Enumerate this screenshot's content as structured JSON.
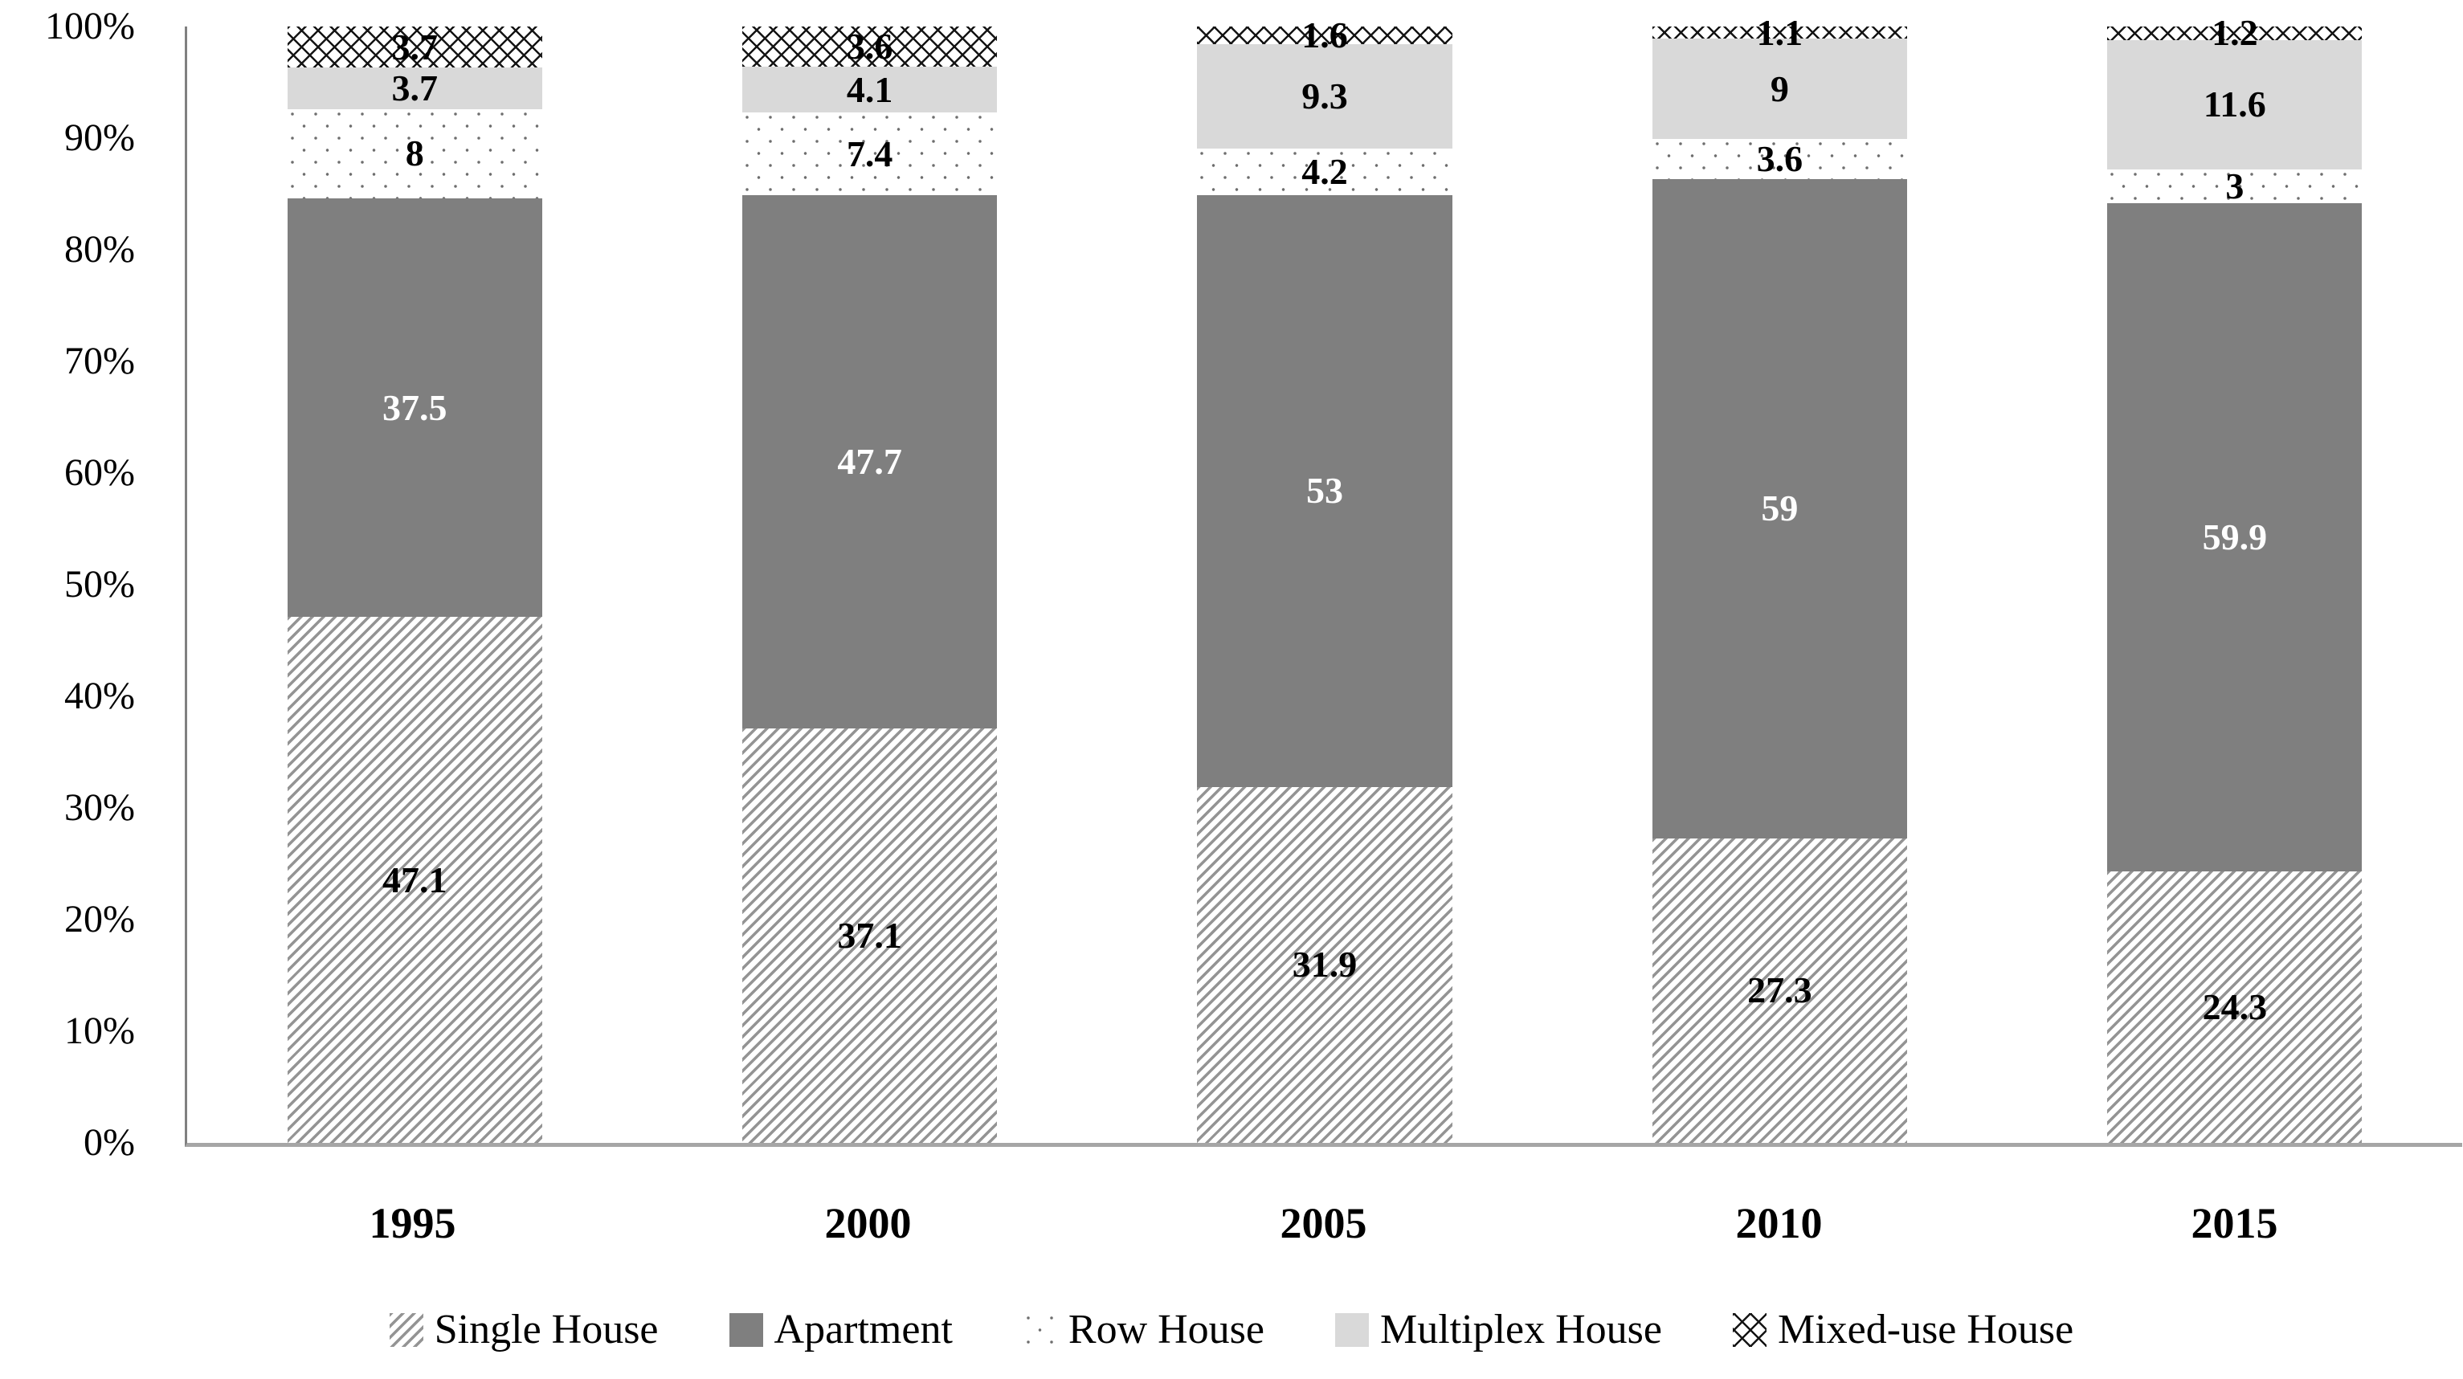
{
  "chart_data": {
    "type": "bar",
    "stacked": true,
    "stacked_unit": "percent",
    "title": "",
    "xlabel": "",
    "ylabel": "",
    "ylim": [
      0,
      100
    ],
    "grid": false,
    "legend_position": "bottom",
    "categories": [
      "1995",
      "2000",
      "2005",
      "2010",
      "2015"
    ],
    "series": [
      {
        "name": "Single House",
        "pattern": "diagonal-hatch",
        "label_color": "#000000",
        "values": [
          47.1,
          37.1,
          31.9,
          27.3,
          24.3
        ],
        "labels": [
          "47.1",
          "37.1",
          "31.9",
          "27.3",
          "24.3"
        ]
      },
      {
        "name": "Apartment",
        "pattern": "solid-dark-gray",
        "label_color": "#ffffff",
        "values": [
          37.5,
          47.7,
          53,
          59,
          59.9
        ],
        "labels": [
          "37.5",
          "47.7",
          "53",
          "59",
          "59.9"
        ]
      },
      {
        "name": "Row House",
        "pattern": "dots",
        "label_color": "#000000",
        "values": [
          8,
          7.4,
          4.2,
          3.6,
          3
        ],
        "labels": [
          "8",
          "7.4",
          "4.2",
          "3.6",
          "3"
        ]
      },
      {
        "name": "Multiplex House",
        "pattern": "solid-light-gray",
        "label_color": "#000000",
        "values": [
          3.7,
          4.1,
          9.3,
          9,
          11.6
        ],
        "labels": [
          "3.7",
          "4.1",
          "9.3",
          "9",
          "11.6"
        ]
      },
      {
        "name": "Mixed-use House",
        "pattern": "crosshatch",
        "label_color": "#000000",
        "values": [
          3.7,
          3.6,
          1.6,
          1.1,
          1.2
        ],
        "labels": [
          "3.7",
          "3.6",
          "1.6",
          "1.1",
          "1.2"
        ]
      }
    ],
    "y_ticks": [
      "100%",
      "90%",
      "80%",
      "70%",
      "60%",
      "50%",
      "40%",
      "30%",
      "20%",
      "10%",
      "0%"
    ]
  },
  "colors": {
    "apartment_fill": "#7f7f7f",
    "multiplex_fill": "#d9d9d9",
    "hatch_line": "#949494",
    "dot_color": "#6e6e6e",
    "crosshatch_line": "#141414",
    "y_axis_line": "#808080",
    "x_axis_line": "#a6a6a6",
    "background": "#ffffff"
  }
}
